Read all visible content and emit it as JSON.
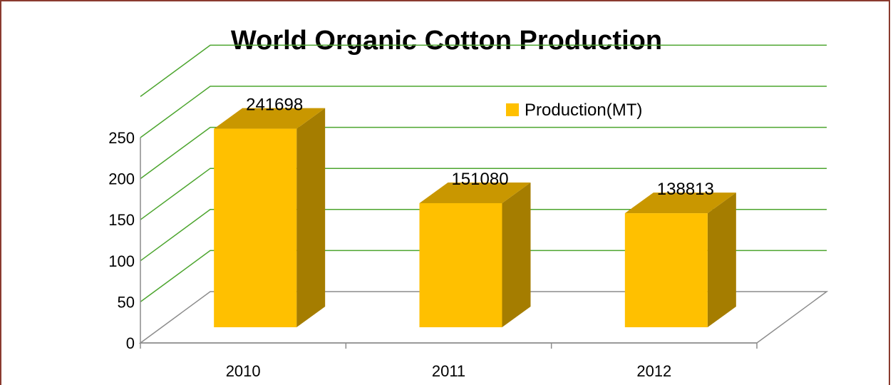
{
  "chart_data": {
    "type": "bar",
    "title": "World Organic Cotton Production",
    "categories": [
      "2010",
      "2011",
      "2012"
    ],
    "series": [
      {
        "name": "Production(MT)",
        "values": [
          241.698,
          151.08,
          138.813
        ],
        "data_labels": [
          "241698",
          "151080",
          "138813"
        ]
      }
    ],
    "yticks": [
      "0",
      "50",
      "100",
      "150",
      "200",
      "250"
    ],
    "ylim": [
      0,
      250
    ],
    "grid": true,
    "legend_position": "top-right",
    "style": "3d-column"
  },
  "colors": {
    "bar_front": "#FFC000",
    "bar_top": "#C99700",
    "bar_side": "#A57D00",
    "gridline": "#4CA52E",
    "axis": "#8C8C8C",
    "frame": "#8A3B2F"
  }
}
